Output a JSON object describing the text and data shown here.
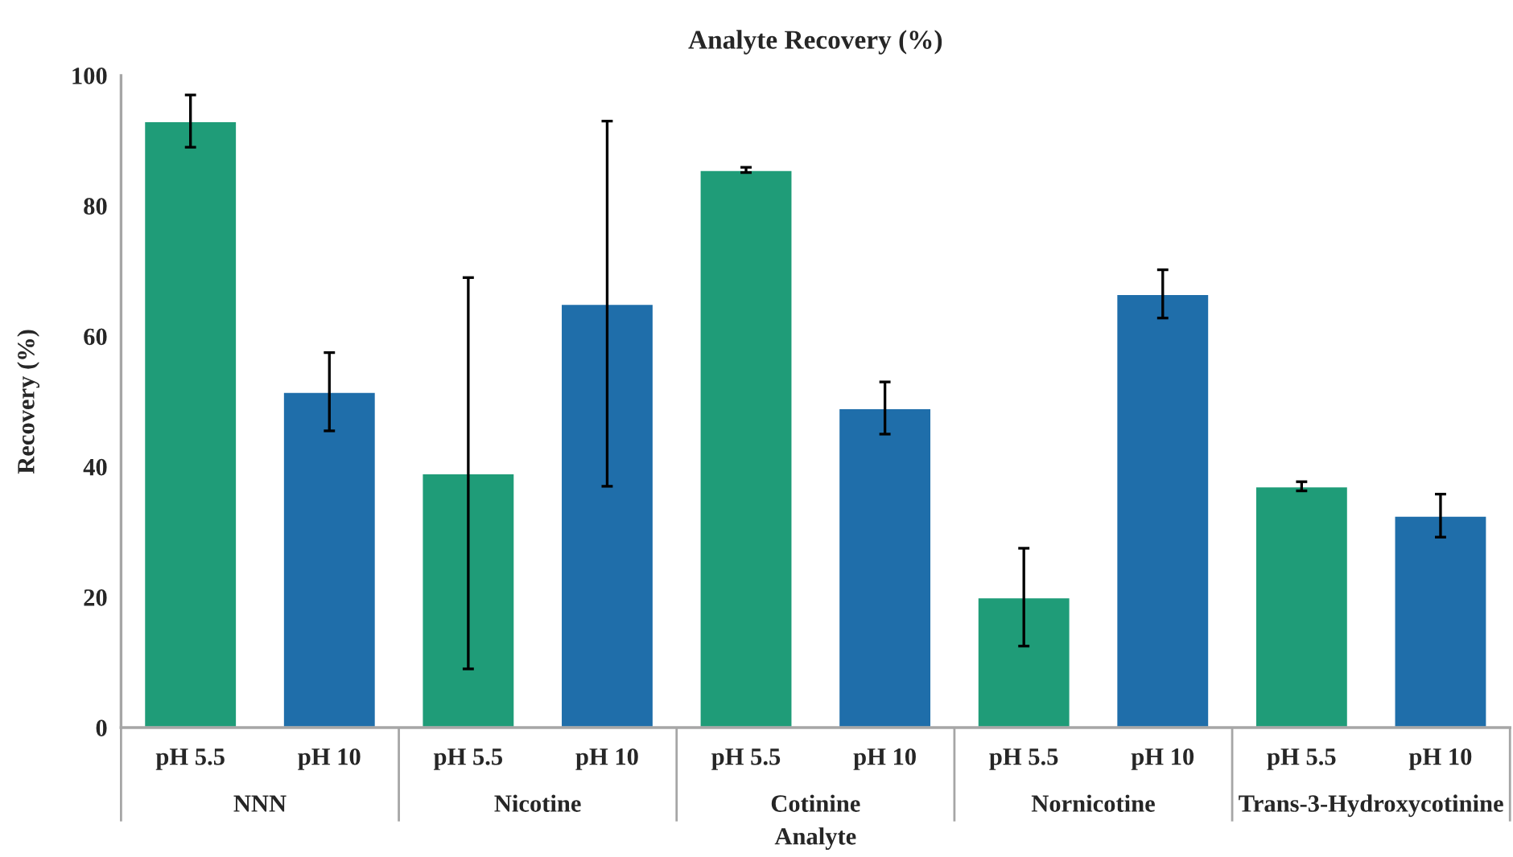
{
  "chart_data": {
    "type": "bar",
    "title": "Analyte Recovery (%)",
    "xlabel": "Analyte",
    "ylabel": "Recovery (%)",
    "categories": [
      "NNN",
      "Nicotine",
      "Cotinine",
      "Nornicotine",
      "Trans-3-Hydroxycotinine"
    ],
    "series": [
      {
        "name": "pH 5.5",
        "color": "#1f9c78",
        "values": [
          93,
          39,
          85.5,
          20,
          37
        ],
        "errors": [
          4,
          30,
          0.4,
          7.5,
          0.7
        ]
      },
      {
        "name": "pH 10",
        "color": "#1f6eaa",
        "values": [
          51.5,
          65,
          49,
          66.5,
          32.5
        ],
        "errors": [
          6,
          28,
          4,
          3.7,
          3.3
        ]
      }
    ],
    "ylim": [
      0,
      100
    ],
    "yticks": [
      0,
      20,
      40,
      60,
      80,
      100
    ]
  }
}
